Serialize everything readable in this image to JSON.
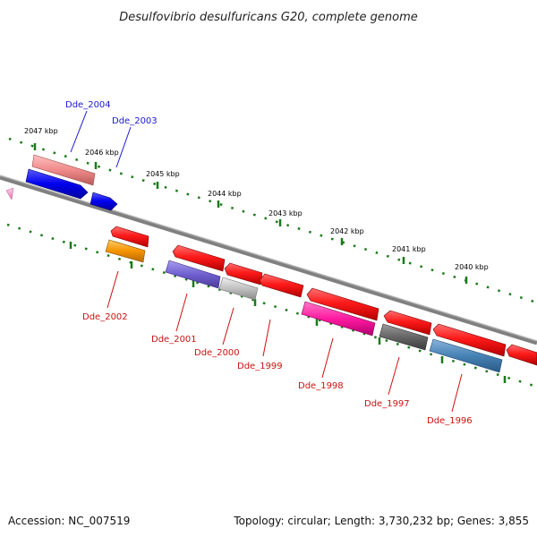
{
  "title": "Desulfovibrio desulfuricans G20, complete genome",
  "footer": {
    "accession": "Accession: NC_007519",
    "topology": "Topology: circular; Length: 3,730,232 bp; Genes: 3,855"
  },
  "kbp_labels": [
    "2047 kbp",
    "2046 kbp",
    "2045 kbp",
    "2044 kbp",
    "2043 kbp",
    "2042 kbp",
    "2041 kbp",
    "2040 kbp"
  ],
  "gene_labels": {
    "top": [
      "Dde_2004",
      "Dde_2003"
    ],
    "bottom": [
      "Dde_2002",
      "Dde_2001",
      "Dde_2000",
      "Dde_1999",
      "Dde_1998",
      "Dde_1997",
      "Dde_1996"
    ]
  },
  "colors": {
    "top_label": "#1a1acc",
    "bottom_label": "#cc1111",
    "backbone": "#808080",
    "tick": "#1a7a1a"
  }
}
